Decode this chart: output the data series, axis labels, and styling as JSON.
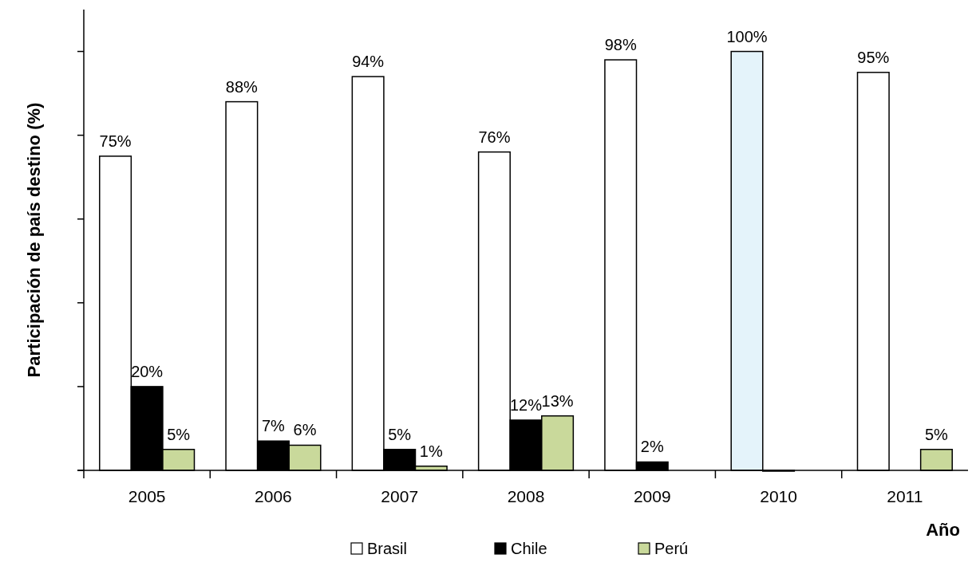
{
  "chart_data": {
    "type": "bar",
    "ylabel": "Participación de país destino (%)",
    "xlabel": "Año",
    "categories": [
      "2005",
      "2006",
      "2007",
      "2008",
      "2009",
      "2010",
      "2011"
    ],
    "series": [
      {
        "name": "Brasil",
        "color": "#ffffff",
        "colors": [
          "#ffffff",
          "#ffffff",
          "#ffffff",
          "#ffffff",
          "#ffffff",
          "#e4f3fa",
          "#ffffff"
        ],
        "values": [
          75,
          88,
          94,
          76,
          98,
          100,
          95
        ],
        "value_labels": [
          "75%",
          "88%",
          "94%",
          "76%",
          "98%",
          "100%",
          "95%"
        ]
      },
      {
        "name": "Chile",
        "color": "#000000",
        "values": [
          20,
          7,
          5,
          12,
          2,
          0,
          null
        ],
        "value_labels": [
          "20%",
          "7%",
          "5%",
          "12%",
          "2%",
          null,
          null
        ]
      },
      {
        "name": "Perú",
        "color": "#c9d99b",
        "values": [
          5,
          6,
          1,
          13,
          null,
          null,
          5
        ],
        "value_labels": [
          "5%",
          "6%",
          "1%",
          "13%",
          null,
          null,
          "5%"
        ]
      }
    ],
    "ylim": [
      0,
      110
    ],
    "yticks": [
      {
        "value": 0,
        "label": null
      },
      {
        "value": 20,
        "label": null
      },
      {
        "value": 40,
        "label": null
      },
      {
        "value": 60,
        "label": null
      },
      {
        "value": 80,
        "label": null
      },
      {
        "value": 100,
        "label": null
      }
    ],
    "tick_labels": "x",
    "legend": "bottom"
  }
}
